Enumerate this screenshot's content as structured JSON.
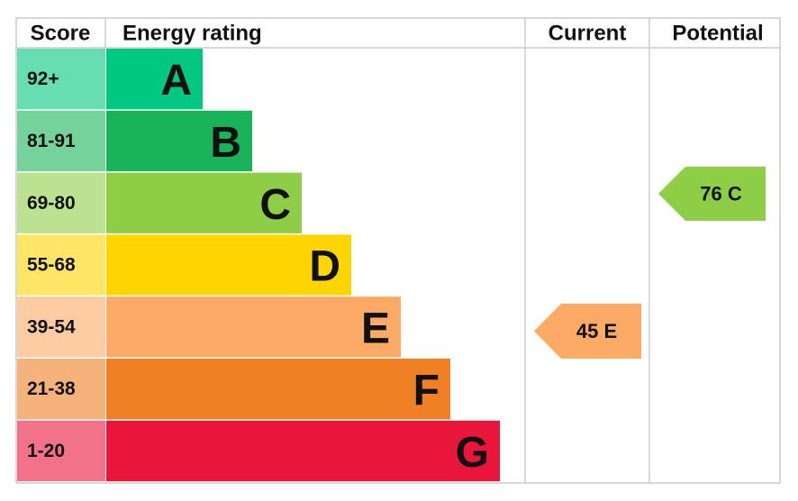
{
  "headers": {
    "score": "Score",
    "rating": "Energy rating",
    "current": "Current",
    "potential": "Potential"
  },
  "bands": [
    {
      "score": "92+",
      "letter": "A",
      "color": "#00c781"
    },
    {
      "score": "81-91",
      "letter": "B",
      "color": "#19b459"
    },
    {
      "score": "69-80",
      "letter": "C",
      "color": "#8dce46"
    },
    {
      "score": "55-68",
      "letter": "D",
      "color": "#ffd500"
    },
    {
      "score": "39-54",
      "letter": "E",
      "color": "#fcaa65"
    },
    {
      "score": "21-38",
      "letter": "F",
      "color": "#ef8023"
    },
    {
      "score": "1-20",
      "letter": "G",
      "color": "#e9153b"
    }
  ],
  "current": {
    "label": "45 E",
    "color": "#fcaa65"
  },
  "potential": {
    "label": "76 C",
    "color": "#8dce46"
  }
}
